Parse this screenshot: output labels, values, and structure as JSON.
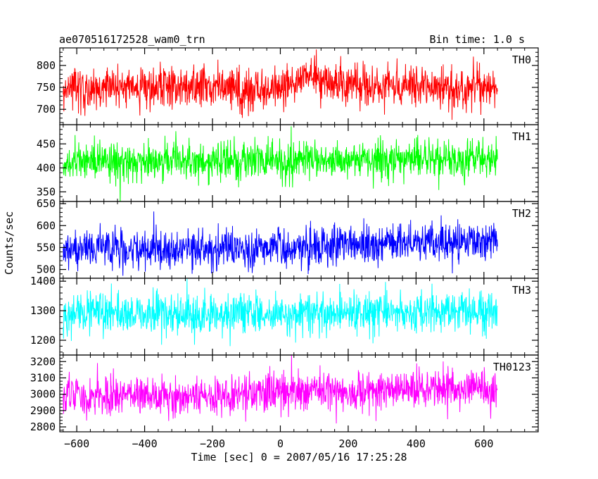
{
  "header": {
    "title": "ae070516172528_wam0_trn",
    "bin_time": "Bin time: 1.0 s"
  },
  "chart_data": {
    "type": "line",
    "shared_x": {
      "label": "Time [sec] 0 = 2007/05/16 17:25:28",
      "range": [
        -650,
        760
      ],
      "ticks": [
        -600,
        -400,
        -200,
        0,
        200,
        400,
        600
      ],
      "tick_labels": [
        "−600",
        "−400",
        "−200",
        "0",
        "200",
        "400",
        "600"
      ],
      "data_span": [
        -640,
        640
      ],
      "bin": 1.0
    },
    "ylabel": "Counts/sec",
    "panels": [
      {
        "name": "TH0",
        "color": "#ff0000",
        "ylim": [
          665,
          840
        ],
        "ticks": [
          700,
          750,
          800
        ],
        "tick_labels": [
          "700",
          "750",
          "800"
        ],
        "mean": 752,
        "noise_sd": 24,
        "trend": [
          [
            -640,
            748
          ],
          [
            -300,
            750
          ],
          [
            -100,
            744
          ],
          [
            0,
            752
          ],
          [
            80,
            775
          ],
          [
            200,
            750
          ],
          [
            400,
            752
          ],
          [
            640,
            748
          ]
        ]
      },
      {
        "name": "TH1",
        "color": "#00ff00",
        "ylim": [
          330,
          490
        ],
        "ticks": [
          350,
          400,
          450
        ],
        "tick_labels": [
          "350",
          "400",
          "450"
        ],
        "mean": 415,
        "noise_sd": 20,
        "trend": [
          [
            -640,
            412
          ],
          [
            0,
            416
          ],
          [
            640,
            418
          ]
        ]
      },
      {
        "name": "TH2",
        "color": "#0000ff",
        "ylim": [
          480,
          655
        ],
        "ticks": [
          500,
          550,
          600,
          650
        ],
        "tick_labels": [
          "500",
          "550",
          "600",
          "650"
        ],
        "mean": 552,
        "noise_sd": 22,
        "trend": [
          [
            -640,
            548
          ],
          [
            -300,
            545
          ],
          [
            0,
            548
          ],
          [
            300,
            558
          ],
          [
            640,
            565
          ]
        ]
      },
      {
        "name": "TH3",
        "color": "#00ffff",
        "ylim": [
          1150,
          1410
        ],
        "ticks": [
          1200,
          1300,
          1400
        ],
        "tick_labels": [
          "1200",
          "1300",
          "1400"
        ],
        "mean": 1290,
        "noise_sd": 36,
        "trend": [
          [
            -640,
            1285
          ],
          [
            0,
            1290
          ],
          [
            640,
            1300
          ]
        ]
      },
      {
        "name": "TH0123",
        "color": "#ff00ff",
        "ylim": [
          2770,
          3240
        ],
        "ticks": [
          2800,
          2900,
          3000,
          3100,
          3200
        ],
        "tick_labels": [
          "2800",
          "2900",
          "3000",
          "3100",
          "3200"
        ],
        "mean": 3000,
        "noise_sd": 60,
        "trend": [
          [
            -640,
            2990
          ],
          [
            -300,
            2985
          ],
          [
            0,
            3010
          ],
          [
            300,
            3030
          ],
          [
            640,
            3035
          ]
        ]
      }
    ]
  }
}
